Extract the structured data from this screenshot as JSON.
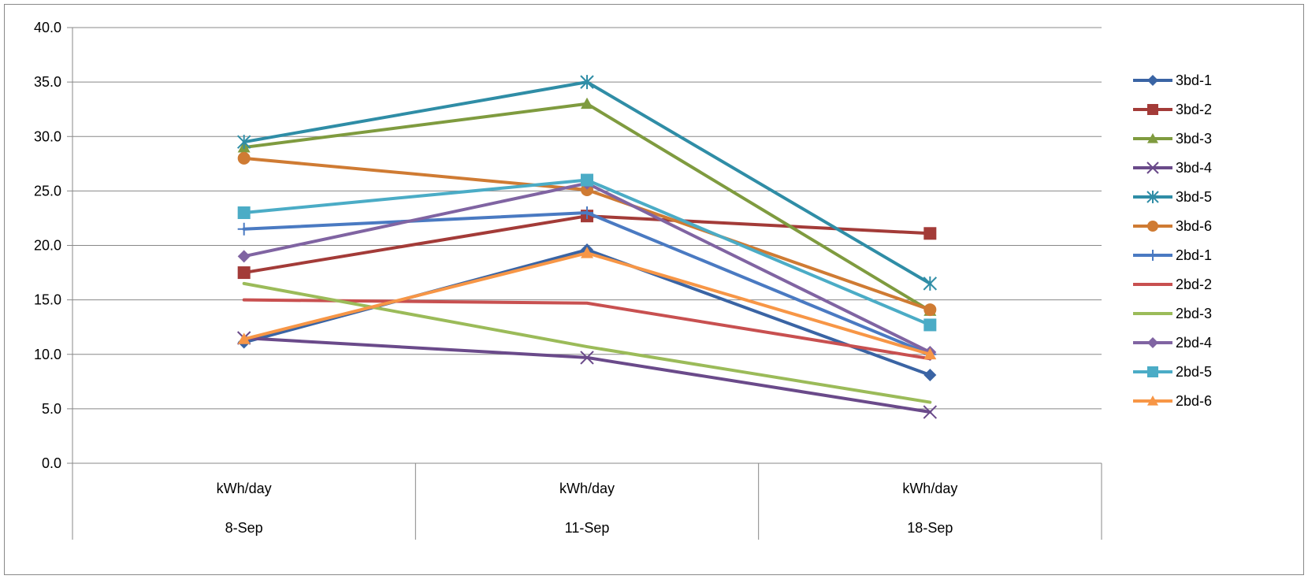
{
  "chart_data": {
    "type": "line",
    "title": "",
    "xlabel": "",
    "ylabel": "",
    "ylim": [
      0,
      40
    ],
    "ytick_step": 5,
    "ytick_labels": [
      "0.0",
      "5.0",
      "10.0",
      "15.0",
      "20.0",
      "25.0",
      "30.0",
      "35.0",
      "40.0"
    ],
    "grid": true,
    "legend_position": "right",
    "categories": [
      "kWh/day",
      "kWh/day",
      "kWh/day"
    ],
    "group_labels": [
      "8-Sep",
      "11-Sep",
      "18-Sep"
    ],
    "series": [
      {
        "name": "3bd-1",
        "color": "#3a64a4",
        "marker": "diamond",
        "values": [
          11.1,
          19.6,
          8.1
        ]
      },
      {
        "name": "3bd-2",
        "color": "#a33b38",
        "marker": "square",
        "values": [
          17.5,
          22.7,
          21.1
        ]
      },
      {
        "name": "3bd-3",
        "color": "#7f9b3f",
        "marker": "triangle",
        "values": [
          29.0,
          33.0,
          14.0
        ]
      },
      {
        "name": "3bd-4",
        "color": "#6a4a8a",
        "marker": "x",
        "values": [
          11.5,
          9.7,
          4.7
        ]
      },
      {
        "name": "3bd-5",
        "color": "#2f8da6",
        "marker": "star",
        "values": [
          29.5,
          35.0,
          16.5
        ]
      },
      {
        "name": "3bd-6",
        "color": "#cf7b33",
        "marker": "circle",
        "values": [
          28.0,
          25.1,
          14.1
        ]
      },
      {
        "name": "2bd-1",
        "color": "#4a7ac2",
        "marker": "plus",
        "values": [
          21.5,
          23.0,
          10.0
        ]
      },
      {
        "name": "2bd-2",
        "color": "#c85050",
        "marker": "none",
        "values": [
          15.0,
          14.7,
          9.6
        ]
      },
      {
        "name": "2bd-3",
        "color": "#9bbb59",
        "marker": "none",
        "values": [
          16.5,
          10.7,
          5.6
        ]
      },
      {
        "name": "2bd-4",
        "color": "#8064a2",
        "marker": "diamond",
        "values": [
          19.0,
          25.7,
          10.2
        ]
      },
      {
        "name": "2bd-5",
        "color": "#4bacc6",
        "marker": "square",
        "values": [
          23.0,
          26.0,
          12.7
        ]
      },
      {
        "name": "2bd-6",
        "color": "#f79646",
        "marker": "triangle",
        "values": [
          11.4,
          19.3,
          10.0
        ]
      }
    ]
  }
}
